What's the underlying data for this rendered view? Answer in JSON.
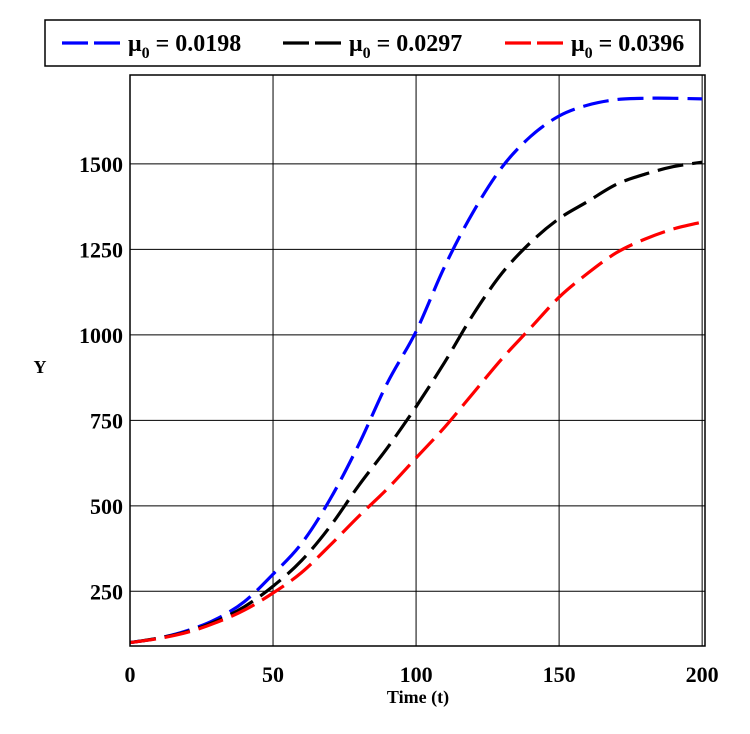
{
  "chart_data": {
    "type": "line",
    "xlabel": "Time (t)",
    "ylabel": "Y",
    "xlim": [
      0,
      201
    ],
    "ylim": [
      90,
      1760
    ],
    "x_ticks": [
      0,
      50,
      100,
      150,
      200
    ],
    "y_ticks": [
      250,
      500,
      750,
      1000,
      1250,
      1500
    ],
    "grid": true,
    "legend": "top",
    "series": [
      {
        "symbol": "μ",
        "subscript": "0",
        "value_text": " = 0.0198",
        "color": "#0000ff",
        "x": [
          0,
          10,
          20,
          30,
          40,
          50,
          60,
          70,
          80,
          90,
          100,
          110,
          120,
          130,
          140,
          150,
          160,
          170,
          180,
          190,
          200
        ],
        "y": [
          100,
          113,
          135,
          168,
          220,
          300,
          390,
          520,
          680,
          860,
          1010,
          1200,
          1360,
          1490,
          1580,
          1640,
          1672,
          1688,
          1692,
          1692,
          1690
        ]
      },
      {
        "symbol": "μ",
        "subscript": "0",
        "value_text": " = 0.0297",
        "color": "#000000",
        "x": [
          0,
          10,
          20,
          30,
          40,
          50,
          60,
          70,
          80,
          90,
          100,
          110,
          120,
          130,
          140,
          150,
          160,
          170,
          180,
          190,
          200
        ],
        "y": [
          100,
          113,
          132,
          162,
          205,
          265,
          340,
          440,
          560,
          670,
          790,
          920,
          1060,
          1180,
          1270,
          1340,
          1390,
          1440,
          1470,
          1492,
          1505
        ]
      },
      {
        "symbol": "μ",
        "subscript": "0",
        "value_text": " = 0.0396",
        "color": "#ff0000",
        "x": [
          0,
          10,
          20,
          30,
          40,
          50,
          60,
          70,
          80,
          90,
          100,
          110,
          120,
          130,
          140,
          150,
          160,
          170,
          180,
          190,
          200
        ],
        "y": [
          100,
          112,
          130,
          158,
          195,
          245,
          305,
          385,
          470,
          550,
          640,
          730,
          830,
          930,
          1020,
          1110,
          1180,
          1240,
          1280,
          1310,
          1330
        ]
      }
    ]
  }
}
